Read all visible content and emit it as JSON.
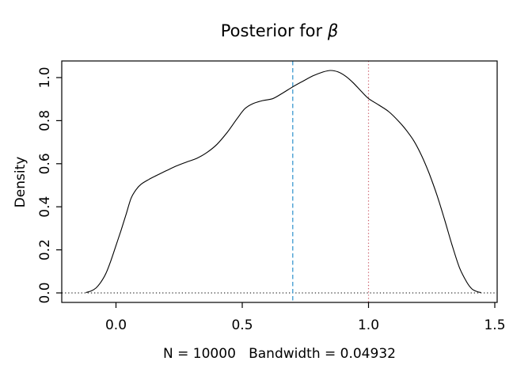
{
  "header": {
    "title_prefix": "Posterior for ",
    "title_symbol": "β"
  },
  "chart_data": {
    "type": "line",
    "title": "Posterior for β",
    "xlabel": "N = 10000   Bandwidth = 0.04932",
    "ylabel": "Density",
    "n_samples": 10000,
    "bandwidth": 0.04932,
    "grid": false,
    "legend": null,
    "xlim": [
      -0.2147,
      1.5094
    ],
    "ylim": [
      -0.0441,
      1.0772
    ],
    "x_ticks": {
      "values": [
        0.0,
        0.5,
        1.0,
        1.5
      ],
      "labels": [
        "0.0",
        "0.5",
        "1.0",
        "1.5"
      ]
    },
    "y_ticks": {
      "values": [
        0.0,
        0.2,
        0.4,
        0.6,
        0.8,
        1.0
      ],
      "labels": [
        "0.0",
        "0.2",
        "0.4",
        "0.6",
        "0.8",
        "1.0"
      ]
    },
    "series": [
      {
        "name": "posterior-density-curve",
        "color": "#000000",
        "points": [
          [
            -0.119,
            0.002
          ],
          [
            -0.1,
            0.008
          ],
          [
            -0.08,
            0.022
          ],
          [
            -0.06,
            0.05
          ],
          [
            -0.04,
            0.09
          ],
          [
            -0.02,
            0.15
          ],
          [
            0.0,
            0.22
          ],
          [
            0.02,
            0.29
          ],
          [
            0.04,
            0.365
          ],
          [
            0.06,
            0.44
          ],
          [
            0.08,
            0.48
          ],
          [
            0.1,
            0.505
          ],
          [
            0.13,
            0.527
          ],
          [
            0.16,
            0.545
          ],
          [
            0.2,
            0.568
          ],
          [
            0.24,
            0.59
          ],
          [
            0.28,
            0.608
          ],
          [
            0.32,
            0.625
          ],
          [
            0.36,
            0.652
          ],
          [
            0.4,
            0.69
          ],
          [
            0.44,
            0.745
          ],
          [
            0.48,
            0.81
          ],
          [
            0.51,
            0.855
          ],
          [
            0.54,
            0.878
          ],
          [
            0.58,
            0.893
          ],
          [
            0.62,
            0.902
          ],
          [
            0.66,
            0.928
          ],
          [
            0.7,
            0.957
          ],
          [
            0.74,
            0.983
          ],
          [
            0.78,
            1.008
          ],
          [
            0.82,
            1.026
          ],
          [
            0.85,
            1.033
          ],
          [
            0.88,
            1.026
          ],
          [
            0.91,
            1.006
          ],
          [
            0.94,
            0.975
          ],
          [
            0.97,
            0.938
          ],
          [
            1.0,
            0.903
          ],
          [
            1.04,
            0.873
          ],
          [
            1.08,
            0.842
          ],
          [
            1.12,
            0.796
          ],
          [
            1.15,
            0.755
          ],
          [
            1.18,
            0.705
          ],
          [
            1.21,
            0.638
          ],
          [
            1.24,
            0.555
          ],
          [
            1.27,
            0.458
          ],
          [
            1.3,
            0.345
          ],
          [
            1.33,
            0.225
          ],
          [
            1.36,
            0.118
          ],
          [
            1.39,
            0.048
          ],
          [
            1.41,
            0.018
          ],
          [
            1.43,
            0.006
          ],
          [
            1.445,
            0.002
          ]
        ]
      }
    ],
    "vlines": [
      {
        "x": 0.7,
        "style": "dashed",
        "color": "#2b90cc"
      },
      {
        "x": 1.0,
        "style": "dotted",
        "color": "#cd5f6b"
      }
    ],
    "hlines": [
      {
        "y": 0.0,
        "style": "dotted",
        "color": "#000000"
      }
    ]
  }
}
